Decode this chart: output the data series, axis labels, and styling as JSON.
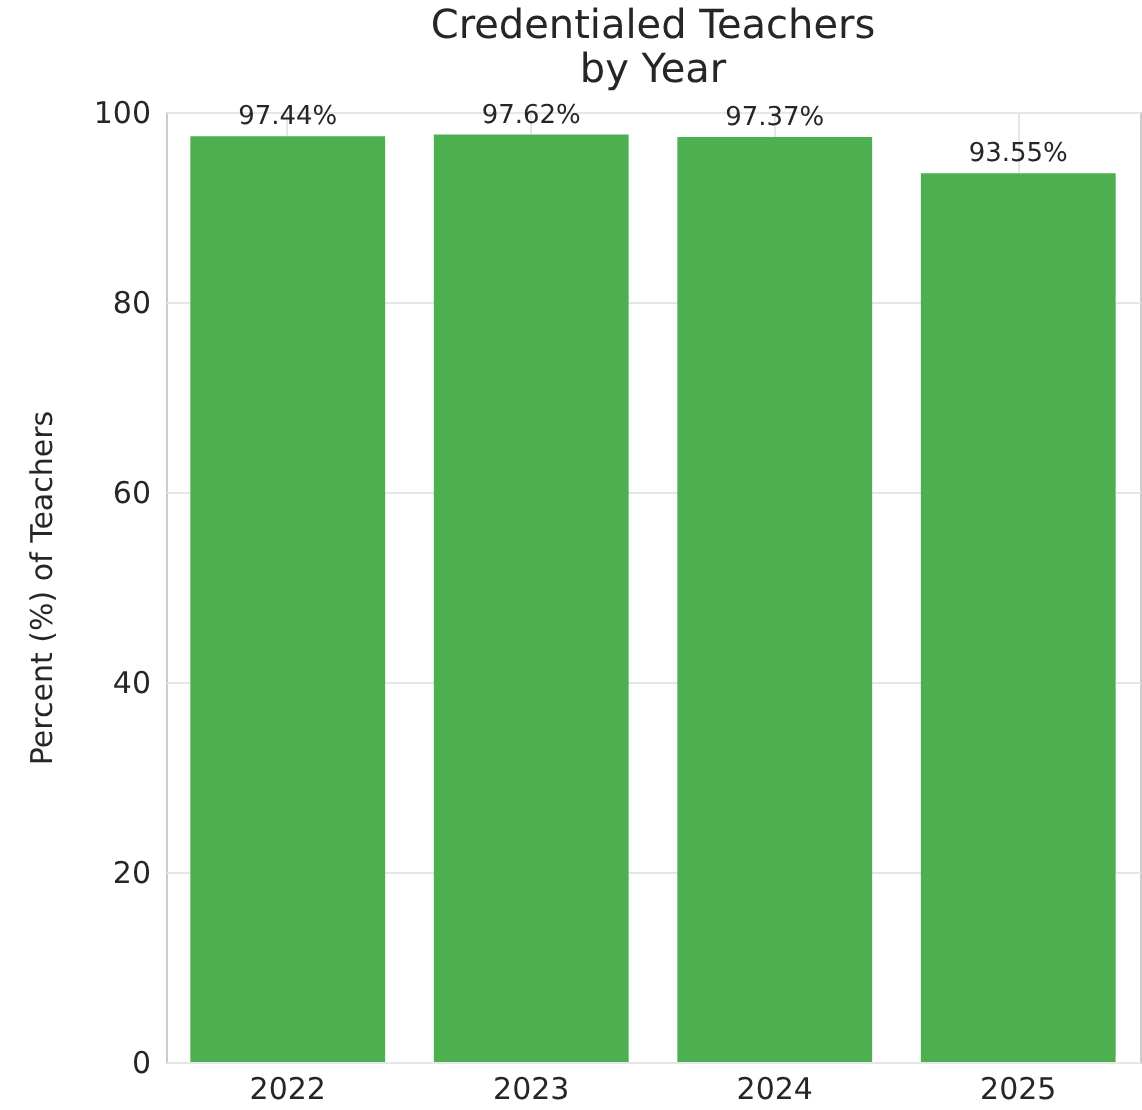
{
  "chart_data": {
    "type": "bar",
    "title": "Credentialed Teachers\nby Year",
    "ylabel": "Percent (%) of Teachers",
    "categories": [
      "2022",
      "2023",
      "2024",
      "2025"
    ],
    "values": [
      97.44,
      97.62,
      97.37,
      93.55
    ],
    "value_labels": [
      "97.44%",
      "97.62%",
      "97.37%",
      "93.55%"
    ],
    "color": "#4caf50",
    "ylim": [
      0,
      100
    ],
    "yticks": [
      0,
      20,
      40,
      60,
      80,
      100
    ],
    "grid": true
  }
}
